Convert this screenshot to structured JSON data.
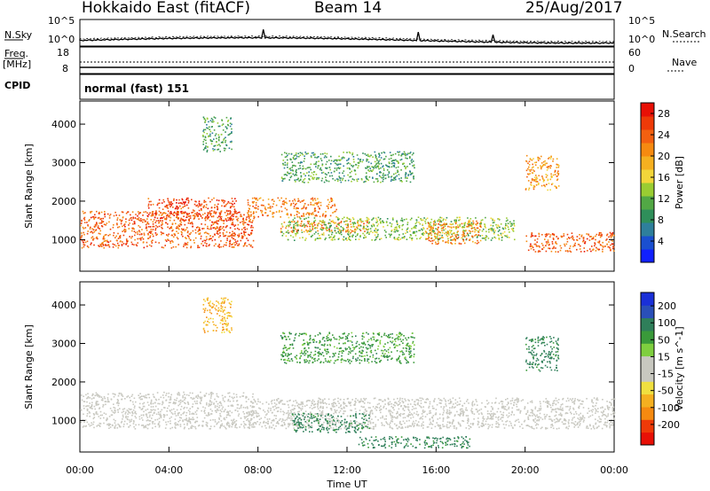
{
  "header": {
    "title": "Hokkaido East (fitACF)",
    "beam": "Beam 14",
    "date": "25/Aug/2017"
  },
  "top_panels": {
    "nsky_label": "N.Sky",
    "nsearch_label": "N.Search",
    "nsky_ticks": [
      "10^5",
      "10^0"
    ],
    "freq_label_1": "Freq.",
    "freq_label_2": "[MHz]",
    "freq_ticks": [
      "18",
      "8"
    ],
    "nave_ticks": [
      "60",
      "0"
    ],
    "nave_label": "Nave",
    "cpid_label": "CPID",
    "cpid_value": "normal (fast) 151"
  },
  "chart_data": [
    {
      "type": "heatmap",
      "name": "power",
      "xlabel": "Time UT",
      "ylabel": "Slant Range [km]",
      "x_ticks": [
        "00:00",
        "04:00",
        "08:00",
        "12:00",
        "16:00",
        "20:00",
        "00:00"
      ],
      "xlim_hours": [
        0,
        24
      ],
      "y_ticks": [
        1000,
        2000,
        3000,
        4000
      ],
      "ylim": [
        180,
        4600
      ],
      "colorbar": {
        "label": "Power [dB]",
        "ticks": [
          4,
          8,
          12,
          16,
          20,
          24,
          28
        ],
        "range": [
          0,
          30
        ],
        "colors": [
          "#1020ff",
          "#1a4fd0",
          "#2e7f9c",
          "#2f8f5a",
          "#52a845",
          "#9acd32",
          "#f3d63a",
          "#f5b020",
          "#f68a10",
          "#f36010",
          "#ee3a08",
          "#e81006"
        ]
      },
      "echo_regions": [
        {
          "t0": 0.0,
          "t1": 7.8,
          "r0": 800,
          "r1": 1750,
          "level": 24
        },
        {
          "t0": 3.0,
          "t1": 7.0,
          "r0": 1500,
          "r1": 2100,
          "level": 26
        },
        {
          "t0": 7.5,
          "t1": 11.5,
          "r0": 1600,
          "r1": 2100,
          "level": 22
        },
        {
          "t0": 9.0,
          "t1": 13.0,
          "r0": 1200,
          "r1": 1500,
          "level": 22
        },
        {
          "t0": 9.0,
          "t1": 15.0,
          "r0": 2500,
          "r1": 3300,
          "level": 10
        },
        {
          "t0": 9.0,
          "t1": 19.5,
          "r0": 1000,
          "r1": 1600,
          "level": 13
        },
        {
          "t0": 15.5,
          "t1": 18.0,
          "r0": 900,
          "r1": 1500,
          "level": 22
        },
        {
          "t0": 20.0,
          "t1": 24.0,
          "r0": 700,
          "r1": 1200,
          "level": 24
        },
        {
          "t0": 20.0,
          "t1": 21.5,
          "r0": 2300,
          "r1": 3200,
          "level": 20
        },
        {
          "t0": 5.5,
          "t1": 6.8,
          "r0": 3300,
          "r1": 4200,
          "level": 10
        }
      ]
    },
    {
      "type": "heatmap",
      "name": "velocity",
      "xlabel": "Time UT",
      "ylabel": "Slant Range [km]",
      "x_ticks": [
        "00:00",
        "04:00",
        "08:00",
        "12:00",
        "16:00",
        "20:00",
        "00:00"
      ],
      "xlim_hours": [
        0,
        24
      ],
      "y_ticks": [
        1000,
        2000,
        3000,
        4000
      ],
      "ylim": [
        180,
        4600
      ],
      "colorbar": {
        "label": "Velocity [m s^-1]",
        "ticks": [
          "200",
          "100",
          "50",
          "15",
          "-15",
          "-50",
          "-100",
          "-200"
        ],
        "colors": [
          "#1a30d8",
          "#2a4fb8",
          "#2f7f5a",
          "#3a9a3a",
          "#7fcf3f",
          "#c8c8c0",
          "#c8c8c0",
          "#f0e040",
          "#f5b020",
          "#f68a10",
          "#ee3a08",
          "#e81006"
        ]
      },
      "echo_regions": [
        {
          "t0": 0.0,
          "t1": 7.8,
          "r0": 800,
          "r1": 1750,
          "level": 0
        },
        {
          "t0": 7.5,
          "t1": 24.0,
          "r0": 800,
          "r1": 1600,
          "level": 0
        },
        {
          "t0": 9.5,
          "t1": 13.0,
          "r0": 700,
          "r1": 1200,
          "level": 60
        },
        {
          "t0": 12.5,
          "t1": 17.5,
          "r0": 300,
          "r1": 600,
          "level": 60
        },
        {
          "t0": 9.0,
          "t1": 15.0,
          "r0": 2500,
          "r1": 3300,
          "level": 40
        },
        {
          "t0": 20.0,
          "t1": 21.5,
          "r0": 2300,
          "r1": 3200,
          "level": 60
        },
        {
          "t0": 5.5,
          "t1": 6.8,
          "r0": 3300,
          "r1": 4200,
          "level": -40
        }
      ]
    }
  ]
}
